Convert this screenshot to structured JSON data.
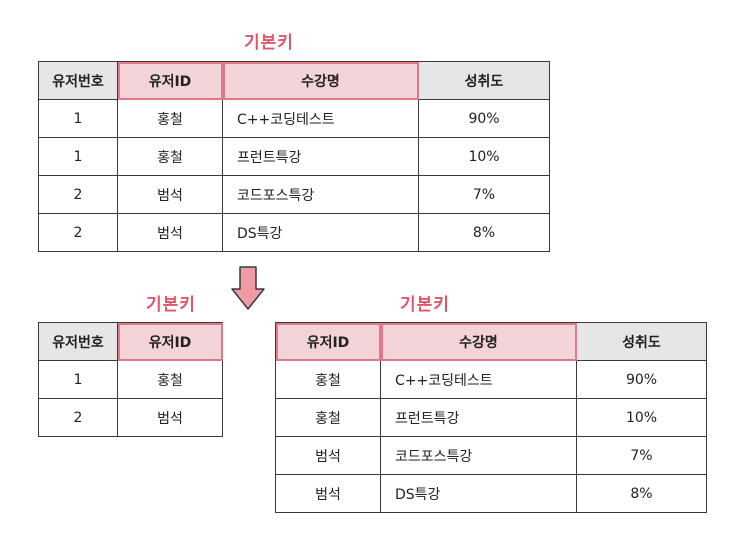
{
  "top": {
    "pk_label": "기본키",
    "headers": [
      "유저번호",
      "유저ID",
      "수강명",
      "성취도"
    ],
    "rows": [
      [
        "1",
        "홍철",
        "C++코딩테스트",
        "90%"
      ],
      [
        "1",
        "홍철",
        "프런트특강",
        "10%"
      ],
      [
        "2",
        "범석",
        "코드포스특강",
        "7%"
      ],
      [
        "2",
        "범석",
        "DS특강",
        "8%"
      ]
    ]
  },
  "bottom_left": {
    "pk_label": "기본키",
    "headers": [
      "유저번호",
      "유저ID"
    ],
    "rows": [
      [
        "1",
        "홍철"
      ],
      [
        "2",
        "범석"
      ]
    ]
  },
  "bottom_right": {
    "pk_label": "기본키",
    "headers": [
      "유저ID",
      "수강명",
      "성취도"
    ],
    "rows": [
      [
        "홍철",
        "C++코딩테스트",
        "90%"
      ],
      [
        "홍철",
        "프런트특강",
        "10%"
      ],
      [
        "범석",
        "코드포스특강",
        "7%"
      ],
      [
        "범석",
        "DS특강",
        "8%"
      ]
    ]
  },
  "colors": {
    "pk_text": "#e0566a",
    "pk_fill": "#f1d3d8",
    "pk_border": "#e07a8a",
    "header_fill": "#e6e6e6",
    "arrow_fill": "#f09aa6"
  },
  "icons": [
    "down-arrow-icon"
  ]
}
